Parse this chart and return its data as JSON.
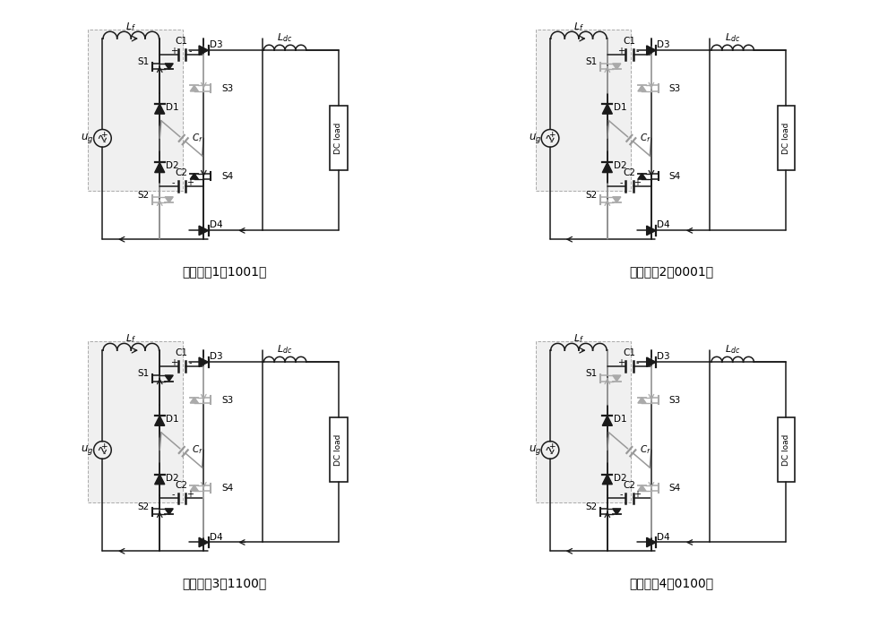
{
  "subtitles": [
    "运行状态1（1001）",
    "运行状态2（0001）",
    "运行状态3（1100）",
    "运行状态4（0100）"
  ],
  "bg_color": "#ffffff",
  "line_color": "#1a1a1a",
  "shade_color": "#eeeeee",
  "shade_edge": "#999999",
  "font_size_sub": 10,
  "states": [
    {
      "s1": true,
      "s2": false,
      "s3": false,
      "s4": true
    },
    {
      "s1": false,
      "s2": false,
      "s3": false,
      "s4": true
    },
    {
      "s1": true,
      "s2": true,
      "s3": false,
      "s4": false
    },
    {
      "s1": false,
      "s2": true,
      "s3": false,
      "s4": false
    }
  ]
}
